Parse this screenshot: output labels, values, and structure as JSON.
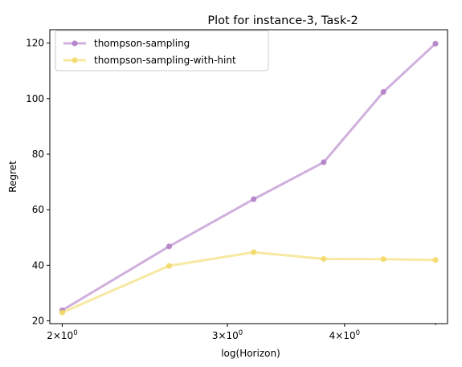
{
  "chart_data": {
    "type": "line",
    "title": "Plot for instance-3, Task-2",
    "xlabel": "log(Horizon)",
    "ylabel": "Regret",
    "x_scale": "log",
    "x": [
      2.0,
      2.6,
      3.2,
      3.8,
      4.4,
      5.0
    ],
    "xlim": [
      1.94,
      5.15
    ],
    "ylim": [
      19.0,
      124.8
    ],
    "xticks": [
      {
        "value": 2,
        "base": "2",
        "exp": "0"
      },
      {
        "value": 3,
        "base": "3",
        "exp": "0"
      },
      {
        "value": 4,
        "base": "4",
        "exp": "0"
      }
    ],
    "yticks": [
      20,
      40,
      60,
      80,
      100,
      120
    ],
    "legend_position": "top-left",
    "series": [
      {
        "name": "thompson-sampling",
        "color": "#b07cc6",
        "values": [
          23.8,
          46.8,
          63.8,
          77.1,
          102.4,
          119.8
        ]
      },
      {
        "name": "thompson-sampling-with-hint",
        "color": "#f2d864",
        "values": [
          23.0,
          39.8,
          44.7,
          42.3,
          42.2,
          41.9
        ]
      }
    ]
  }
}
